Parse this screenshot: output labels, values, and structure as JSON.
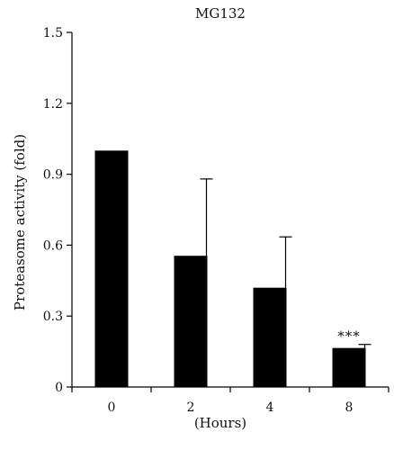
{
  "chart_data": {
    "type": "bar",
    "title": "MG132",
    "xlabel": "(Hours)",
    "ylabel": "Proteasome activity (fold)",
    "categories": [
      "0",
      "2",
      "4",
      "8"
    ],
    "values": [
      1.0,
      0.555,
      0.42,
      0.165
    ],
    "error_upper": [
      0.0,
      0.88,
      0.635,
      0.18
    ],
    "annotations": [
      "",
      "",
      "",
      "***"
    ],
    "ylim": [
      0,
      1.5
    ],
    "yticks": [
      0,
      0.3,
      0.6,
      0.9,
      1.2,
      1.5
    ],
    "ytick_labels": [
      "0",
      "0.3",
      "0.6",
      "0.9",
      "1.2",
      "1.5"
    ],
    "bar_color": "#000000",
    "grid": false
  }
}
